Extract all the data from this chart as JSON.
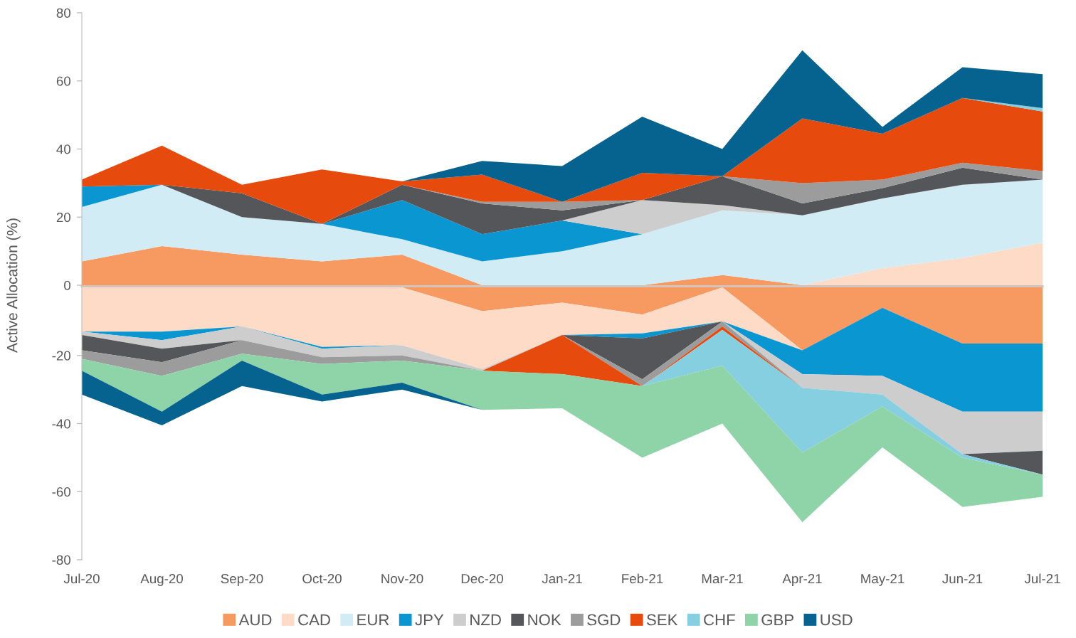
{
  "chart_data": [
    {
      "type": "area",
      "stacked": true,
      "ylabel": "Active Allocation (%)",
      "tick_labels": "y",
      "ylim": [
        0,
        80
      ],
      "yticks": [
        0,
        20,
        40,
        60,
        80
      ],
      "legend": "bottom",
      "series": [
        {
          "name": "AUD",
          "color": "#f79a62",
          "values": [
            7,
            11.5,
            9,
            7,
            9,
            0,
            0,
            0,
            3,
            0,
            0,
            0,
            0
          ]
        },
        {
          "name": "CAD",
          "color": "#fddbc7",
          "values": [
            0,
            0,
            0,
            0,
            0,
            0,
            0,
            0,
            0,
            0,
            5,
            8,
            12.5
          ]
        },
        {
          "name": "EUR",
          "color": "#d2ecf5",
          "values": [
            16,
            18,
            11,
            11,
            4.5,
            7,
            10,
            15,
            19,
            20.5,
            20.5,
            21.5,
            18.5
          ]
        },
        {
          "name": "JPY",
          "color": "#0a96d1",
          "values": [
            6,
            0,
            0,
            0,
            11.5,
            8,
            9,
            0,
            0,
            0,
            0,
            0,
            0
          ]
        },
        {
          "name": "NZD",
          "color": "#cdcdcd",
          "values": [
            0,
            0,
            0,
            0,
            0,
            0,
            0,
            10,
            1.5,
            0,
            0,
            0,
            0
          ]
        },
        {
          "name": "NOK",
          "color": "#55565a",
          "values": [
            0,
            0,
            7,
            0,
            4.5,
            9,
            3,
            0,
            8.5,
            3.5,
            3,
            5,
            0
          ]
        },
        {
          "name": "SGD",
          "color": "#9c9c9c",
          "values": [
            0,
            0,
            0,
            0,
            0,
            0.5,
            2.5,
            0,
            0,
            6,
            2.5,
            1.5,
            2.5
          ]
        },
        {
          "name": "SEK",
          "color": "#e64a0c",
          "values": [
            2,
            11.5,
            2.5,
            16,
            1,
            8,
            0,
            8,
            0,
            19,
            13.5,
            19,
            17.5
          ]
        },
        {
          "name": "CHF",
          "color": "#86cfe0",
          "values": [
            0,
            0,
            0,
            0,
            0,
            0,
            0,
            0,
            0,
            0,
            0,
            0,
            1
          ]
        },
        {
          "name": "USD",
          "color": "#06638f",
          "values": [
            0,
            0,
            0,
            0,
            0,
            4,
            10.5,
            16.5,
            8,
            20,
            2,
            9,
            10
          ]
        }
      ]
    },
    {
      "type": "area",
      "stacked": true,
      "categories": [
        "Jul-20",
        "Aug-20",
        "Sep-20",
        "Oct-20",
        "Nov-20",
        "Dec-20",
        "Jan-21",
        "Feb-21",
        "Mar-21",
        "Apr-21",
        "May-21",
        "Jun-21",
        "Jul-21"
      ],
      "ylim": [
        -80,
        0
      ],
      "yticks": [
        -80,
        -60,
        -40,
        -20
      ],
      "series": [
        {
          "color": "#f79a62",
          "values": [
            0,
            0,
            0,
            0,
            0,
            -7,
            -4.5,
            -8,
            0,
            -18.5,
            -6,
            -16.5,
            -16.5
          ]
        },
        {
          "color": "#fddbc7",
          "values": [
            -13,
            -13,
            -11.5,
            -17.5,
            -17,
            -17,
            -9.5,
            -5.5,
            -10,
            0,
            0,
            0,
            0
          ]
        },
        {
          "color": "#0a96d1",
          "values": [
            0,
            -2.5,
            0,
            -0.5,
            0,
            0,
            0,
            -1.5,
            0,
            -7,
            -20,
            -20,
            -20
          ]
        },
        {
          "color": "#cdcdcd",
          "values": [
            -1,
            -2.5,
            -4,
            -2.5,
            -3,
            -0.5,
            0,
            0,
            0,
            -4,
            -5.5,
            -12.5,
            -11.5
          ]
        },
        {
          "color": "#55565a",
          "values": [
            -4.5,
            -4,
            0,
            0,
            0,
            0,
            0,
            -12,
            0,
            0,
            0,
            0,
            -7
          ]
        },
        {
          "color": "#9c9c9c",
          "values": [
            -2.5,
            -4,
            -4,
            -2,
            -1.5,
            0,
            0,
            -2,
            -1.5,
            0,
            null,
            null,
            null
          ]
        },
        {
          "color": "#e64a0c",
          "values": [
            0,
            0,
            0,
            0,
            0,
            0,
            -11.5,
            0,
            -1,
            0,
            0,
            0,
            0
          ]
        },
        {
          "color": "#86cfe0",
          "values": [
            0,
            0,
            0,
            0,
            0,
            0,
            0,
            0,
            -10.5,
            -19,
            -3.5,
            -1,
            0
          ]
        },
        {
          "name": "GBP",
          "color": "#8fd4a8",
          "values": [
            -3.5,
            -10.5,
            -2,
            -9,
            -6.5,
            -11.5,
            -10,
            -21,
            -17,
            -20.5,
            -12,
            -14.5,
            -6.5
          ]
        },
        {
          "color": "#06638f",
          "values": [
            -7,
            -4,
            -7.5,
            -2,
            -2,
            0,
            0,
            0,
            0,
            0,
            0,
            0,
            0
          ]
        }
      ]
    }
  ]
}
